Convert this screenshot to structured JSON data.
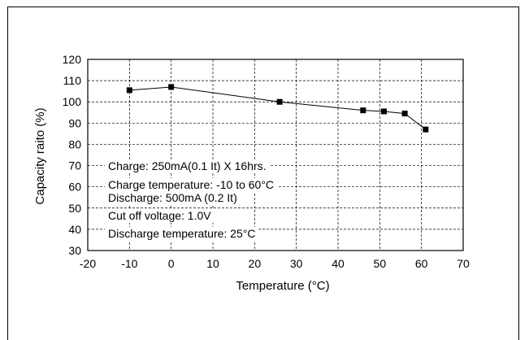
{
  "chart_data": {
    "type": "line",
    "xlabel": "Temperature (°C)",
    "ylabel": "Capacity raito (%)",
    "xlim": [
      -20,
      70
    ],
    "ylim": [
      30,
      120
    ],
    "xticks": [
      "-20",
      "-10",
      "0",
      "10",
      "20",
      "30",
      "40",
      "50",
      "60",
      "70"
    ],
    "yticks": [
      "30",
      "40",
      "50",
      "60",
      "70",
      "80",
      "90",
      "100",
      "110",
      "120"
    ],
    "grid": true,
    "series": [
      {
        "x": [
          -10,
          0,
          26,
          46,
          51,
          56,
          61
        ],
        "y": [
          105.5,
          107,
          100,
          96,
          95.5,
          94.5,
          87
        ]
      }
    ],
    "annotations": [
      "Charge: 250mA(0.1 It) X 16hrs.",
      "Charge temperature: -10 to 60°C",
      "Discharge: 500mA (0.2 It)",
      "Cut off voltage: 1.0V",
      "Discharge temperature: 25°C"
    ]
  }
}
